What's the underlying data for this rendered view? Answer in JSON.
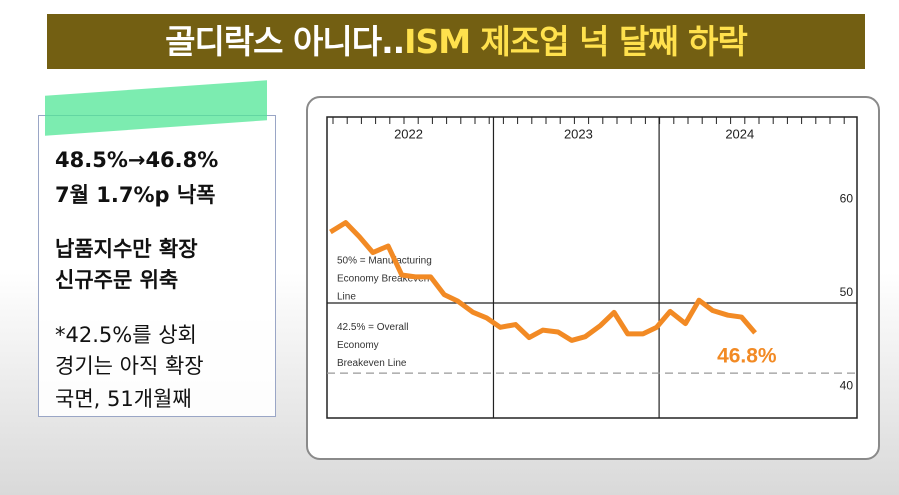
{
  "headline": {
    "part1": "골디락스 아니다..",
    "part2": "ISM 제조업 넉 달째 하락"
  },
  "side_panel": {
    "lines": [
      "48.5%→46.8%",
      "7월 1.7%p 낙폭",
      "납품지수만 확장",
      "신규주문 위축",
      "*42.5%를 상회",
      "경기는 아직 확장",
      "국면, 51개월째"
    ]
  },
  "chart_data": {
    "type": "line",
    "x": [
      2022.04,
      2022.13,
      2022.21,
      2022.29,
      2022.38,
      2022.46,
      2022.54,
      2022.63,
      2022.71,
      2022.79,
      2022.88,
      2022.96,
      2023.04,
      2023.13,
      2023.21,
      2023.29,
      2023.38,
      2023.46,
      2023.54,
      2023.63,
      2023.71,
      2023.79,
      2023.88,
      2023.96,
      2024.04,
      2024.13,
      2024.21,
      2024.29,
      2024.38,
      2024.46,
      2024.54
    ],
    "series": [
      {
        "name": null,
        "color": "#f28a24",
        "values": [
          57.6,
          58.6,
          57.1,
          55.4,
          56.1,
          53.0,
          52.8,
          52.8,
          50.9,
          50.2,
          49.0,
          48.4,
          47.4,
          47.7,
          46.3,
          47.1,
          46.9,
          46.0,
          46.4,
          47.6,
          49.0,
          46.7,
          46.7,
          47.4,
          49.1,
          47.8,
          50.3,
          49.2,
          48.7,
          48.5,
          46.8
        ],
        "value_labels": [
          null,
          null,
          null,
          null,
          null,
          null,
          null,
          null,
          null,
          null,
          null,
          null,
          null,
          null,
          null,
          null,
          null,
          null,
          null,
          null,
          null,
          null,
          null,
          null,
          null,
          null,
          null,
          null,
          null,
          null,
          "46.8%"
        ]
      }
    ],
    "xlim": [
      2022.02,
      2025.14
    ],
    "xticks": [
      {
        "value": 2022.5,
        "label": "2022"
      },
      {
        "value": 2023.5,
        "label": "2023"
      },
      {
        "value": 2024.45,
        "label": "2024"
      }
    ],
    "ylim": [
      37.7,
      69.9
    ],
    "yticks": [
      40,
      50,
      60
    ],
    "reference_lines": [
      {
        "value": 50,
        "style": "solid",
        "label": [
          "50% = Manufacturing",
          "Economy Breakeven",
          "Line"
        ]
      },
      {
        "value": 42.5,
        "style": "dashed",
        "label": [
          "42.5% = Overall",
          "Economy",
          "Breakeven Line"
        ]
      }
    ]
  }
}
